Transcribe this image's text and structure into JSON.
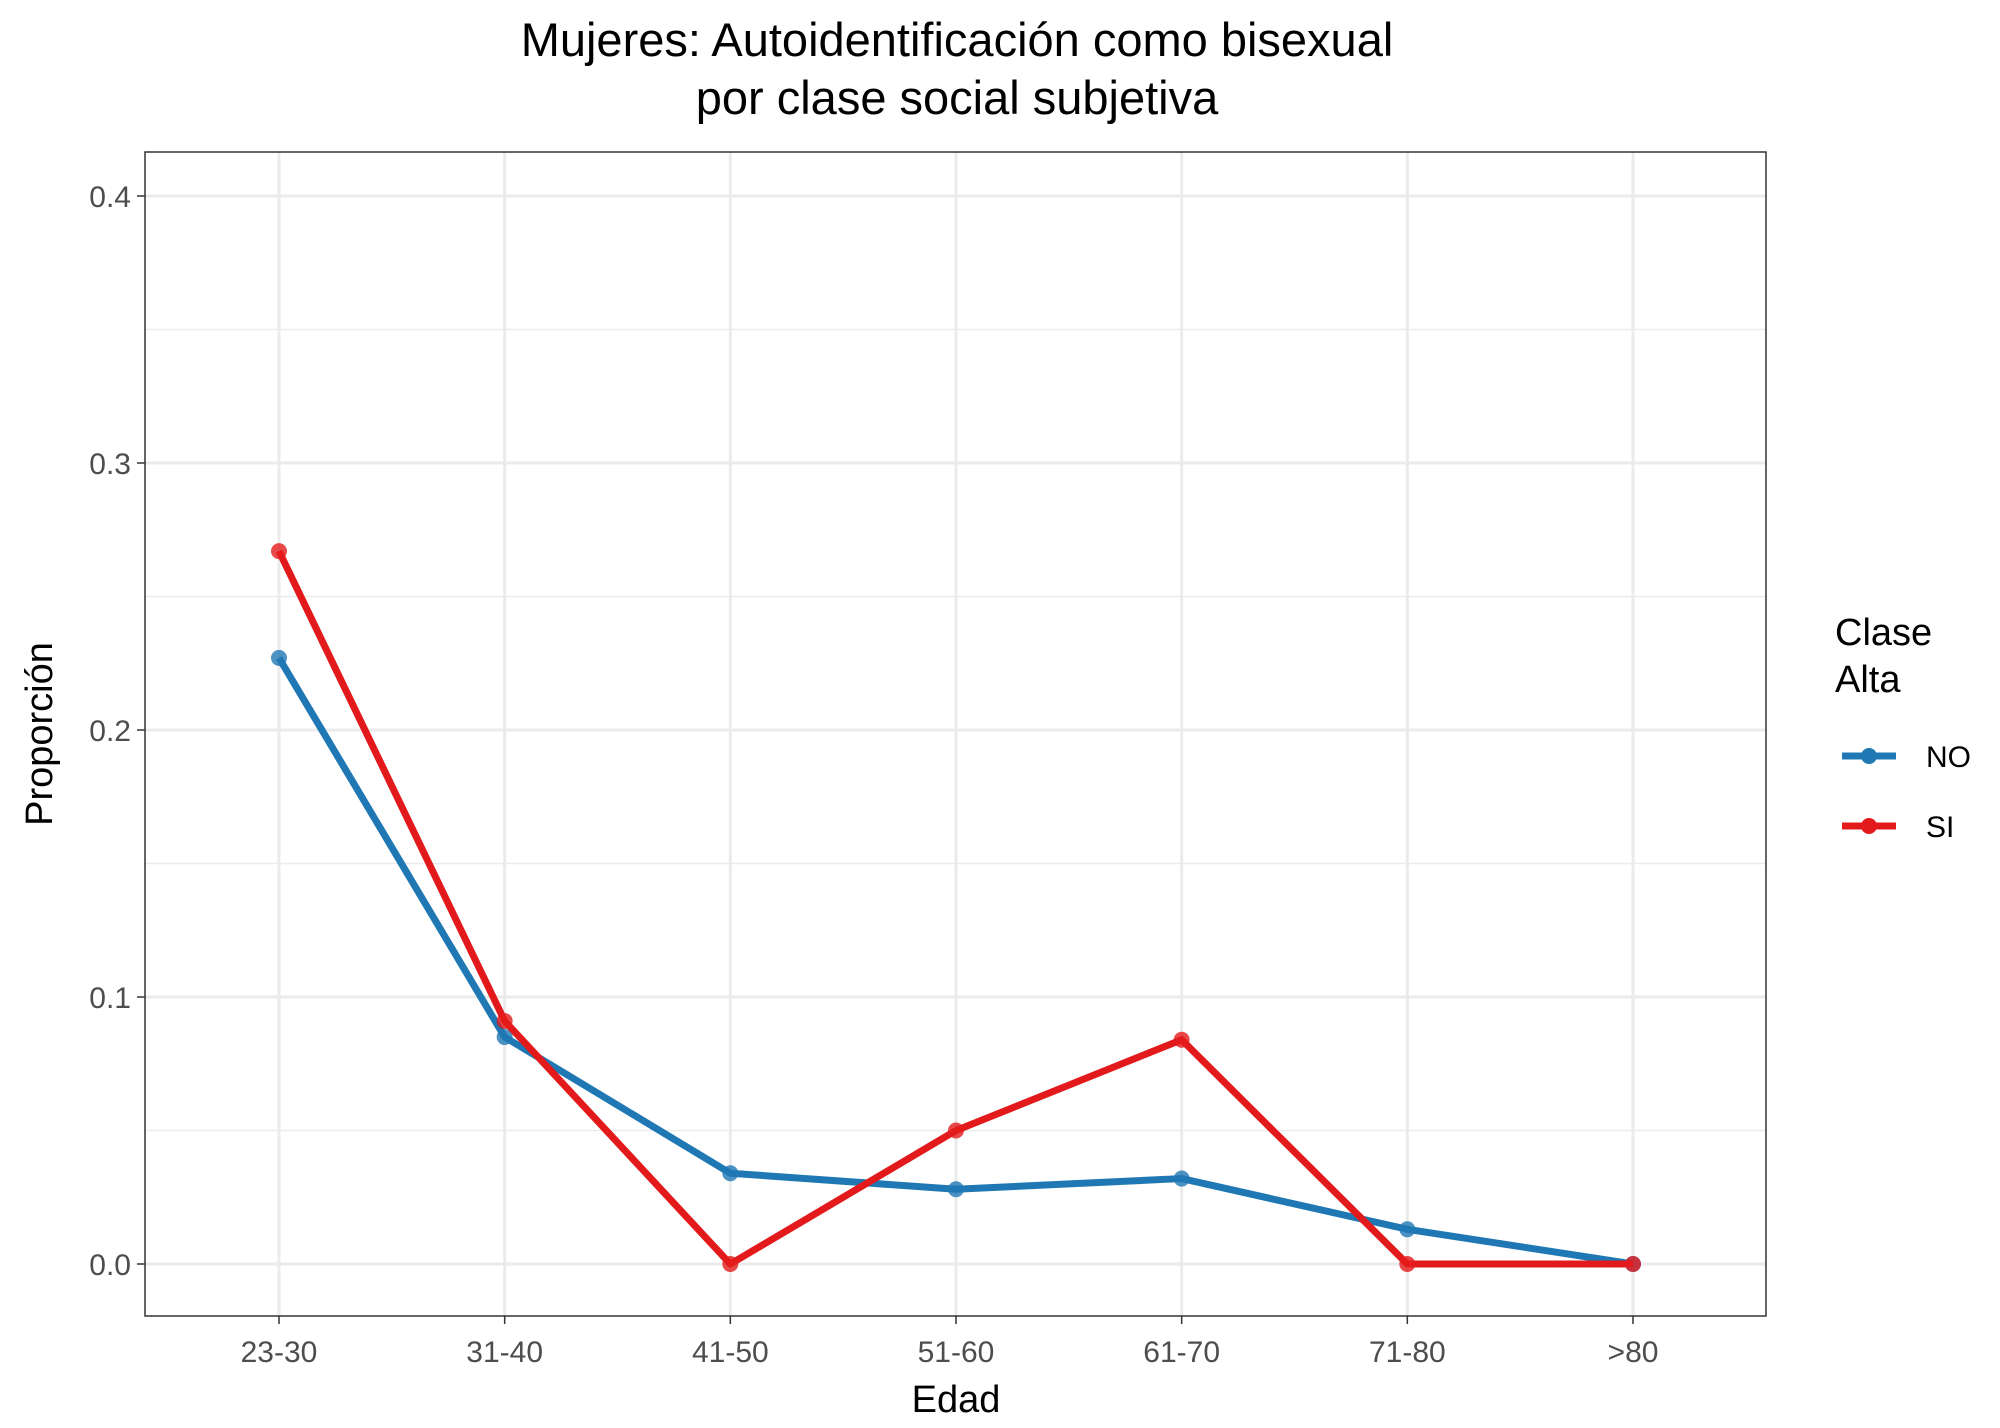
{
  "chart_data": {
    "type": "line",
    "title": "Mujeres: Autoidentificación como bisexual",
    "subtitle": "por clase social subjetiva",
    "xlabel": "Edad",
    "ylabel": "Proporción",
    "categories": [
      "23-30",
      "31-40",
      "41-50",
      "51-60",
      "61-70",
      "71-80",
      ">80"
    ],
    "ylim": [
      -0.02,
      0.416
    ],
    "yticks": [
      "0.0",
      "0.1",
      "0.2",
      "0.3",
      "0.4"
    ],
    "grid": true,
    "legend": {
      "title_line1": "Clase",
      "title_line2": "Alta",
      "placement": "right"
    },
    "series": [
      {
        "name": "NO",
        "color": "#1F78B4",
        "values": [
          0.227,
          0.085,
          0.034,
          0.028,
          0.032,
          0.013,
          0.0
        ]
      },
      {
        "name": "SI",
        "color": "#E31A1C",
        "values": [
          0.267,
          0.091,
          0.0,
          0.05,
          0.084,
          0.0,
          0.0
        ]
      }
    ]
  }
}
